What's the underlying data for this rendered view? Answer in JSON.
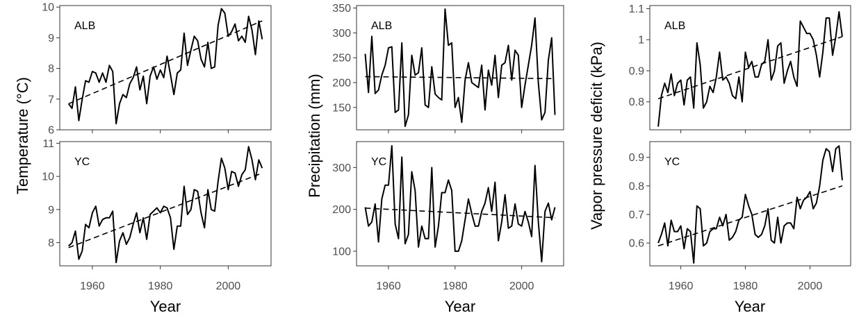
{
  "chart_data": [
    {
      "type": "line",
      "ylabel": "Temperature (°C)",
      "xlabel": "Year",
      "x": [
        1953,
        1954,
        1955,
        1956,
        1957,
        1958,
        1959,
        1960,
        1961,
        1962,
        1963,
        1964,
        1965,
        1966,
        1967,
        1968,
        1969,
        1970,
        1971,
        1972,
        1973,
        1974,
        1975,
        1976,
        1977,
        1978,
        1979,
        1980,
        1981,
        1982,
        1983,
        1984,
        1985,
        1986,
        1987,
        1988,
        1989,
        1990,
        1991,
        1992,
        1993,
        1994,
        1995,
        1996,
        1997,
        1998,
        1999,
        2000,
        2001,
        2002,
        2003,
        2004,
        2005,
        2006,
        2007,
        2008,
        2009,
        2010
      ],
      "xlim": [
        1950.4,
        2012.6
      ],
      "xticks": [
        1960,
        1980,
        2000
      ],
      "grid": false,
      "panels": [
        {
          "label": "ALB",
          "ylim": [
            6,
            10.05
          ],
          "yticks": [
            6,
            7,
            8,
            9,
            10
          ],
          "values": [
            6.85,
            6.7,
            7.4,
            6.3,
            7.0,
            7.6,
            7.55,
            7.9,
            7.85,
            7.55,
            7.85,
            7.55,
            8.1,
            7.9,
            6.2,
            6.85,
            7.15,
            7.05,
            7.5,
            7.7,
            8.05,
            7.3,
            7.75,
            6.85,
            7.75,
            8.05,
            7.65,
            7.95,
            7.7,
            8.4,
            7.8,
            7.15,
            7.85,
            7.95,
            9.15,
            8.1,
            8.6,
            9.05,
            8.9,
            8.3,
            8.05,
            8.85,
            8.0,
            8.05,
            9.4,
            9.95,
            9.8,
            9.05,
            9.2,
            9.45,
            8.9,
            9.05,
            8.85,
            9.7,
            9.25,
            8.45,
            9.55,
            8.95
          ],
          "trend": [
            6.85,
            9.55
          ]
        },
        {
          "label": "YC",
          "ylim": [
            7.3,
            11.05
          ],
          "yticks": [
            8,
            9,
            10,
            11
          ],
          "values": [
            7.9,
            8.0,
            8.35,
            7.5,
            7.75,
            8.55,
            8.45,
            8.9,
            9.1,
            8.5,
            8.7,
            8.75,
            8.75,
            8.95,
            7.4,
            8.05,
            8.3,
            7.95,
            8.15,
            8.55,
            8.9,
            8.3,
            8.75,
            8.1,
            8.85,
            8.95,
            9.05,
            8.9,
            9.1,
            9.05,
            8.75,
            7.8,
            8.5,
            8.5,
            9.7,
            8.85,
            9.0,
            9.6,
            9.55,
            8.9,
            8.45,
            9.6,
            9.0,
            8.95,
            9.85,
            10.55,
            10.25,
            9.6,
            10.15,
            10.1,
            9.7,
            10.05,
            10.2,
            10.9,
            10.5,
            9.9,
            10.5,
            10.25
          ],
          "trend": [
            7.85,
            10.1
          ]
        }
      ]
    },
    {
      "type": "line",
      "ylabel": "Precipitation (mm)",
      "xlabel": "Year",
      "x": [
        1953,
        1954,
        1955,
        1956,
        1957,
        1958,
        1959,
        1960,
        1961,
        1962,
        1963,
        1964,
        1965,
        1966,
        1967,
        1968,
        1969,
        1970,
        1971,
        1972,
        1973,
        1974,
        1975,
        1976,
        1977,
        1978,
        1979,
        1980,
        1981,
        1982,
        1983,
        1984,
        1985,
        1986,
        1987,
        1988,
        1989,
        1990,
        1991,
        1992,
        1993,
        1994,
        1995,
        1996,
        1997,
        1998,
        1999,
        2000,
        2001,
        2002,
        2003,
        2004,
        2005,
        2006,
        2007,
        2008,
        2009,
        2010
      ],
      "xlim": [
        1950.4,
        2012.6
      ],
      "xticks": [
        1960,
        1980,
        2000
      ],
      "grid": false,
      "panels": [
        {
          "label": "ALB",
          "ylim": [
            105,
            355
          ],
          "yticks": [
            150,
            200,
            250,
            300,
            350
          ],
          "values": [
            258,
            180,
            293,
            178,
            185,
            215,
            235,
            270,
            272,
            140,
            145,
            280,
            112,
            135,
            255,
            215,
            220,
            270,
            155,
            150,
            232,
            177,
            170,
            165,
            348,
            275,
            280,
            150,
            170,
            120,
            205,
            240,
            200,
            195,
            190,
            235,
            145,
            225,
            195,
            255,
            170,
            235,
            240,
            275,
            205,
            265,
            255,
            150,
            195,
            235,
            275,
            330,
            200,
            125,
            140,
            245,
            290,
            135
          ],
          "trend": [
            212,
            208
          ]
        },
        {
          "label": "YC",
          "ylim": [
            65,
            362
          ],
          "yticks": [
            100,
            200,
            300
          ],
          "values": [
            205,
            160,
            170,
            213,
            122,
            225,
            258,
            258,
            352,
            165,
            130,
            325,
            118,
            140,
            290,
            245,
            110,
            160,
            130,
            130,
            300,
            110,
            160,
            240,
            240,
            270,
            245,
            100,
            100,
            125,
            175,
            225,
            190,
            160,
            160,
            195,
            215,
            252,
            195,
            265,
            125,
            170,
            235,
            155,
            160,
            213,
            165,
            160,
            195,
            170,
            135,
            305,
            170,
            75,
            195,
            215,
            175,
            205
          ],
          "trend": [
            203,
            180
          ]
        }
      ]
    },
    {
      "type": "line",
      "ylabel": "Vapor pressure deficit (kPa)",
      "xlabel": "Year",
      "x": [
        1953,
        1954,
        1955,
        1956,
        1957,
        1958,
        1959,
        1960,
        1961,
        1962,
        1963,
        1964,
        1965,
        1966,
        1967,
        1968,
        1969,
        1970,
        1971,
        1972,
        1973,
        1974,
        1975,
        1976,
        1977,
        1978,
        1979,
        1980,
        1981,
        1982,
        1983,
        1984,
        1985,
        1986,
        1987,
        1988,
        1989,
        1990,
        1991,
        1992,
        1993,
        1994,
        1995,
        1996,
        1997,
        1998,
        1999,
        2000,
        2001,
        2002,
        2003,
        2004,
        2005,
        2006,
        2007,
        2008,
        2009,
        2010
      ],
      "xlim": [
        1950.4,
        2012.6
      ],
      "xticks": [
        1960,
        1980,
        2000
      ],
      "grid": false,
      "panels": [
        {
          "label": "ALB",
          "ylim": [
            0.71,
            1.11
          ],
          "yticks": [
            0.8,
            0.9,
            1.0,
            1.1
          ],
          "values": [
            0.72,
            0.82,
            0.86,
            0.83,
            0.89,
            0.82,
            0.86,
            0.87,
            0.79,
            0.87,
            0.88,
            0.78,
            0.99,
            0.92,
            0.78,
            0.8,
            0.85,
            0.83,
            0.88,
            0.96,
            0.87,
            0.88,
            0.86,
            0.82,
            0.81,
            0.88,
            0.8,
            0.96,
            0.91,
            0.93,
            0.88,
            0.88,
            0.92,
            0.93,
            1.0,
            0.87,
            0.9,
            0.98,
            0.99,
            0.86,
            0.9,
            0.93,
            0.88,
            0.85,
            1.06,
            1.04,
            1.02,
            1.02,
            1.0,
            0.95,
            0.88,
            0.96,
            1.07,
            1.07,
            0.95,
            1.01,
            1.09,
            1.01
          ],
          "trend": [
            0.81,
            1.01
          ]
        },
        {
          "label": "YC",
          "ylim": [
            0.52,
            0.955
          ],
          "yticks": [
            0.6,
            0.7,
            0.8,
            0.9
          ],
          "values": [
            0.6,
            0.63,
            0.67,
            0.59,
            0.68,
            0.64,
            0.64,
            0.66,
            0.58,
            0.65,
            0.64,
            0.53,
            0.73,
            0.72,
            0.59,
            0.6,
            0.64,
            0.65,
            0.65,
            0.69,
            0.66,
            0.7,
            0.61,
            0.62,
            0.64,
            0.68,
            0.69,
            0.77,
            0.73,
            0.7,
            0.63,
            0.62,
            0.63,
            0.66,
            0.72,
            0.61,
            0.6,
            0.69,
            0.6,
            0.66,
            0.67,
            0.67,
            0.65,
            0.76,
            0.72,
            0.75,
            0.76,
            0.78,
            0.72,
            0.74,
            0.8,
            0.89,
            0.93,
            0.92,
            0.85,
            0.93,
            0.94,
            0.82
          ],
          "trend": [
            0.59,
            0.8
          ]
        }
      ]
    }
  ]
}
